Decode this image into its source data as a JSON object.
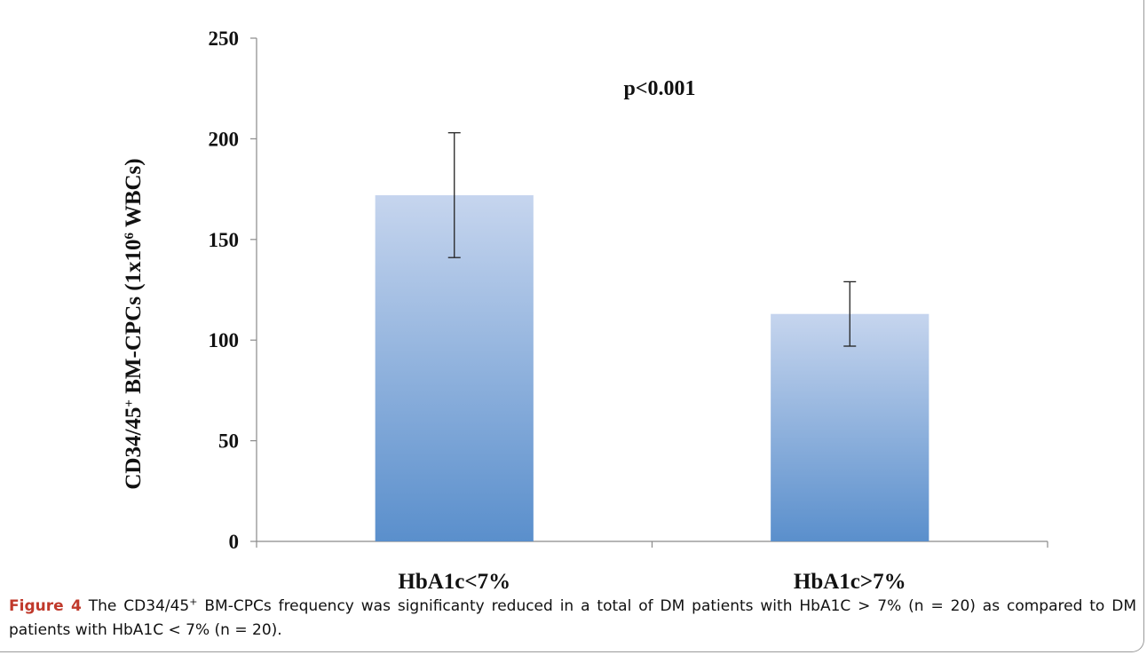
{
  "chart_data": {
    "type": "bar",
    "ylabel_parts": [
      "CD34/45",
      "+",
      " BM-CPCs (1x10",
      "6",
      " WBCs)"
    ],
    "categories": [
      "HbA1c<7%",
      "HbA1c>7%"
    ],
    "values": [
      172,
      113
    ],
    "error_upper": [
      203,
      129
    ],
    "error_lower": [
      141,
      97
    ],
    "ylim": [
      0,
      250
    ],
    "yticks": [
      0,
      50,
      100,
      150,
      200,
      250
    ],
    "annotation": "p<0.001",
    "grid": false,
    "bar_color_top": "#c6d5ee",
    "bar_color_bottom": "#5a8fcc"
  },
  "caption": {
    "label": "Figure 4",
    "text_a": " The CD34/45",
    "sup": "+",
    "text_b": " BM-CPCs frequency was significanty reduced in a total of DM patients with HbA1C > 7% (n = 20) as compared to DM patients with HbA1C < 7% (n = 20)."
  }
}
